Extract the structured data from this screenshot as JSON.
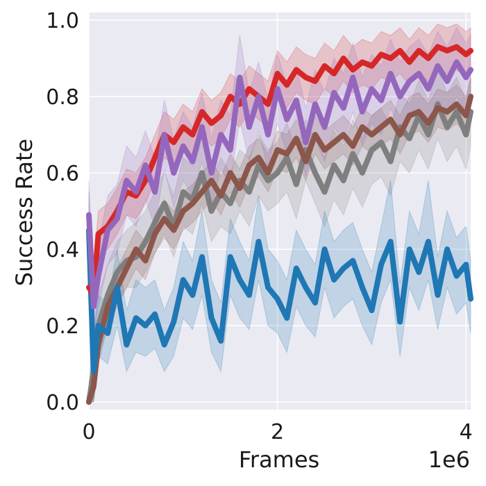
{
  "chart_data": {
    "type": "line",
    "title": "",
    "xlabel": "Frames",
    "ylabel": "Success Rate",
    "x_offset_label": "1e6",
    "xlim": [
      0,
      4.05
    ],
    "ylim": [
      -0.02,
      1.02
    ],
    "xticks": [
      0,
      2,
      4
    ],
    "xtick_labels": [
      "0",
      "2",
      "4"
    ],
    "yticks": [
      0.0,
      0.2,
      0.4,
      0.6,
      0.8,
      1.0
    ],
    "ytick_labels": [
      "0.0",
      "0.2",
      "0.4",
      "0.6",
      "0.8",
      "1.0"
    ],
    "grid": true,
    "legend": "none",
    "background": "#eaeaf2",
    "series": [
      {
        "color": "#7f7f7f",
        "x": [
          0,
          0.05,
          0.1,
          0.2,
          0.3,
          0.4,
          0.5,
          0.6,
          0.7,
          0.8,
          0.9,
          1.0,
          1.1,
          1.2,
          1.3,
          1.4,
          1.5,
          1.6,
          1.7,
          1.8,
          1.9,
          2.0,
          2.1,
          2.2,
          2.3,
          2.4,
          2.5,
          2.6,
          2.7,
          2.8,
          2.9,
          3.0,
          3.1,
          3.2,
          3.3,
          3.4,
          3.5,
          3.6,
          3.7,
          3.8,
          3.9,
          4.0,
          4.05
        ],
        "y": [
          0.0,
          0.08,
          0.2,
          0.28,
          0.34,
          0.37,
          0.38,
          0.42,
          0.47,
          0.52,
          0.46,
          0.55,
          0.53,
          0.6,
          0.5,
          0.55,
          0.52,
          0.58,
          0.55,
          0.62,
          0.58,
          0.6,
          0.64,
          0.57,
          0.66,
          0.6,
          0.55,
          0.62,
          0.58,
          0.65,
          0.6,
          0.66,
          0.68,
          0.63,
          0.72,
          0.69,
          0.75,
          0.7,
          0.78,
          0.72,
          0.76,
          0.7,
          0.76
        ],
        "lower": [
          0.0,
          0.0,
          0.12,
          0.2,
          0.26,
          0.3,
          0.3,
          0.34,
          0.39,
          0.44,
          0.38,
          0.46,
          0.44,
          0.52,
          0.42,
          0.46,
          0.44,
          0.5,
          0.46,
          0.54,
          0.5,
          0.52,
          0.55,
          0.48,
          0.58,
          0.52,
          0.46,
          0.53,
          0.49,
          0.56,
          0.51,
          0.57,
          0.59,
          0.54,
          0.63,
          0.6,
          0.66,
          0.61,
          0.69,
          0.63,
          0.67,
          0.61,
          0.67
        ],
        "upper": [
          0.05,
          0.16,
          0.28,
          0.36,
          0.42,
          0.45,
          0.47,
          0.5,
          0.55,
          0.6,
          0.54,
          0.64,
          0.62,
          0.68,
          0.58,
          0.64,
          0.6,
          0.66,
          0.64,
          0.7,
          0.66,
          0.68,
          0.73,
          0.66,
          0.74,
          0.68,
          0.64,
          0.71,
          0.67,
          0.74,
          0.69,
          0.75,
          0.77,
          0.72,
          0.81,
          0.78,
          0.84,
          0.79,
          0.87,
          0.81,
          0.85,
          0.79,
          0.85
        ]
      },
      {
        "color": "#8c564b",
        "x": [
          0,
          0.05,
          0.1,
          0.2,
          0.3,
          0.4,
          0.5,
          0.6,
          0.7,
          0.8,
          0.9,
          1.0,
          1.1,
          1.2,
          1.3,
          1.4,
          1.5,
          1.6,
          1.7,
          1.8,
          1.9,
          2.0,
          2.1,
          2.2,
          2.3,
          2.4,
          2.5,
          2.6,
          2.7,
          2.8,
          2.9,
          3.0,
          3.1,
          3.2,
          3.3,
          3.4,
          3.5,
          3.6,
          3.7,
          3.8,
          3.9,
          4.0,
          4.05
        ],
        "y": [
          0.0,
          0.04,
          0.15,
          0.25,
          0.3,
          0.35,
          0.4,
          0.37,
          0.44,
          0.48,
          0.45,
          0.5,
          0.52,
          0.55,
          0.58,
          0.54,
          0.6,
          0.56,
          0.62,
          0.64,
          0.6,
          0.66,
          0.65,
          0.69,
          0.63,
          0.7,
          0.66,
          0.68,
          0.7,
          0.67,
          0.72,
          0.7,
          0.72,
          0.74,
          0.7,
          0.75,
          0.76,
          0.73,
          0.77,
          0.76,
          0.78,
          0.75,
          0.8
        ],
        "lower": [
          0.0,
          0.0,
          0.1,
          0.2,
          0.25,
          0.3,
          0.35,
          0.32,
          0.39,
          0.43,
          0.4,
          0.45,
          0.47,
          0.5,
          0.53,
          0.49,
          0.55,
          0.51,
          0.57,
          0.59,
          0.55,
          0.61,
          0.6,
          0.64,
          0.58,
          0.65,
          0.61,
          0.63,
          0.65,
          0.62,
          0.67,
          0.65,
          0.67,
          0.69,
          0.65,
          0.7,
          0.71,
          0.68,
          0.72,
          0.71,
          0.73,
          0.7,
          0.75
        ],
        "upper": [
          0.02,
          0.09,
          0.2,
          0.3,
          0.35,
          0.4,
          0.45,
          0.42,
          0.49,
          0.53,
          0.5,
          0.55,
          0.57,
          0.6,
          0.63,
          0.59,
          0.65,
          0.61,
          0.67,
          0.69,
          0.65,
          0.71,
          0.7,
          0.74,
          0.68,
          0.75,
          0.71,
          0.73,
          0.75,
          0.72,
          0.77,
          0.75,
          0.77,
          0.79,
          0.75,
          0.8,
          0.81,
          0.78,
          0.82,
          0.81,
          0.83,
          0.8,
          0.85
        ]
      },
      {
        "color": "#1f77b4",
        "x": [
          0,
          0.05,
          0.1,
          0.2,
          0.3,
          0.4,
          0.5,
          0.6,
          0.7,
          0.8,
          0.9,
          1.0,
          1.1,
          1.2,
          1.3,
          1.4,
          1.5,
          1.6,
          1.7,
          1.8,
          1.9,
          2.0,
          2.1,
          2.2,
          2.3,
          2.4,
          2.5,
          2.6,
          2.7,
          2.8,
          2.9,
          3.0,
          3.1,
          3.2,
          3.3,
          3.4,
          3.5,
          3.6,
          3.7,
          3.8,
          3.9,
          4.0,
          4.05
        ],
        "y": [
          0.45,
          0.08,
          0.2,
          0.18,
          0.3,
          0.15,
          0.22,
          0.2,
          0.23,
          0.15,
          0.21,
          0.32,
          0.28,
          0.38,
          0.22,
          0.16,
          0.38,
          0.32,
          0.28,
          0.42,
          0.3,
          0.27,
          0.22,
          0.35,
          0.3,
          0.26,
          0.4,
          0.32,
          0.35,
          0.37,
          0.3,
          0.24,
          0.36,
          0.42,
          0.21,
          0.4,
          0.34,
          0.42,
          0.28,
          0.4,
          0.33,
          0.36,
          0.27
        ],
        "lower": [
          0.35,
          0.0,
          0.12,
          0.1,
          0.2,
          0.08,
          0.13,
          0.12,
          0.14,
          0.08,
          0.12,
          0.22,
          0.19,
          0.28,
          0.13,
          0.08,
          0.28,
          0.22,
          0.19,
          0.32,
          0.2,
          0.18,
          0.13,
          0.25,
          0.2,
          0.17,
          0.3,
          0.22,
          0.25,
          0.27,
          0.2,
          0.15,
          0.26,
          0.32,
          0.12,
          0.3,
          0.24,
          0.32,
          0.19,
          0.3,
          0.23,
          0.26,
          0.18
        ],
        "upper": [
          0.55,
          0.2,
          0.28,
          0.26,
          0.4,
          0.24,
          0.32,
          0.3,
          0.32,
          0.24,
          0.3,
          0.42,
          0.37,
          0.5,
          0.32,
          0.26,
          0.48,
          0.42,
          0.37,
          0.54,
          0.4,
          0.37,
          0.32,
          0.45,
          0.4,
          0.36,
          0.5,
          0.42,
          0.45,
          0.47,
          0.4,
          0.34,
          0.46,
          0.58,
          0.31,
          0.5,
          0.44,
          0.58,
          0.38,
          0.5,
          0.43,
          0.46,
          0.37
        ]
      },
      {
        "color": "#d62728",
        "x": [
          0,
          0.05,
          0.1,
          0.2,
          0.3,
          0.4,
          0.5,
          0.6,
          0.7,
          0.8,
          0.9,
          1.0,
          1.1,
          1.2,
          1.3,
          1.4,
          1.5,
          1.6,
          1.7,
          1.8,
          1.9,
          2.0,
          2.1,
          2.2,
          2.3,
          2.4,
          2.5,
          2.6,
          2.7,
          2.8,
          2.9,
          3.0,
          3.1,
          3.2,
          3.3,
          3.4,
          3.5,
          3.6,
          3.7,
          3.8,
          3.9,
          4.0,
          4.05
        ],
        "y": [
          0.3,
          0.28,
          0.44,
          0.46,
          0.5,
          0.55,
          0.54,
          0.58,
          0.64,
          0.7,
          0.68,
          0.72,
          0.7,
          0.76,
          0.73,
          0.75,
          0.8,
          0.78,
          0.82,
          0.8,
          0.78,
          0.86,
          0.83,
          0.87,
          0.85,
          0.84,
          0.88,
          0.86,
          0.9,
          0.87,
          0.89,
          0.88,
          0.91,
          0.9,
          0.92,
          0.89,
          0.92,
          0.9,
          0.93,
          0.92,
          0.93,
          0.91,
          0.92
        ],
        "lower": [
          0.26,
          0.22,
          0.38,
          0.4,
          0.44,
          0.49,
          0.48,
          0.52,
          0.58,
          0.64,
          0.62,
          0.66,
          0.64,
          0.7,
          0.67,
          0.69,
          0.74,
          0.72,
          0.76,
          0.74,
          0.72,
          0.8,
          0.77,
          0.81,
          0.79,
          0.78,
          0.82,
          0.8,
          0.84,
          0.81,
          0.83,
          0.82,
          0.85,
          0.84,
          0.86,
          0.83,
          0.86,
          0.84,
          0.87,
          0.86,
          0.87,
          0.85,
          0.86
        ],
        "upper": [
          0.34,
          0.34,
          0.5,
          0.52,
          0.56,
          0.61,
          0.6,
          0.64,
          0.7,
          0.76,
          0.74,
          0.78,
          0.76,
          0.82,
          0.79,
          0.81,
          0.86,
          0.84,
          0.88,
          0.86,
          0.84,
          0.92,
          0.89,
          0.93,
          0.91,
          0.9,
          0.94,
          0.92,
          0.96,
          0.93,
          0.95,
          0.94,
          0.97,
          0.96,
          0.98,
          0.95,
          0.98,
          0.96,
          0.99,
          0.98,
          0.99,
          0.97,
          0.98
        ]
      },
      {
        "color": "#9467bd",
        "x": [
          0,
          0.05,
          0.1,
          0.2,
          0.3,
          0.4,
          0.5,
          0.6,
          0.7,
          0.8,
          0.9,
          1.0,
          1.1,
          1.2,
          1.3,
          1.4,
          1.5,
          1.6,
          1.7,
          1.8,
          1.9,
          2.0,
          2.1,
          2.2,
          2.3,
          2.4,
          2.5,
          2.6,
          2.7,
          2.8,
          2.9,
          3.0,
          3.1,
          3.2,
          3.3,
          3.4,
          3.5,
          3.6,
          3.7,
          3.8,
          3.9,
          4.0,
          4.05
        ],
        "y": [
          0.49,
          0.25,
          0.33,
          0.45,
          0.48,
          0.58,
          0.55,
          0.62,
          0.55,
          0.7,
          0.6,
          0.67,
          0.63,
          0.72,
          0.6,
          0.7,
          0.66,
          0.85,
          0.72,
          0.8,
          0.7,
          0.82,
          0.74,
          0.79,
          0.68,
          0.78,
          0.72,
          0.81,
          0.77,
          0.85,
          0.76,
          0.82,
          0.79,
          0.86,
          0.8,
          0.84,
          0.86,
          0.82,
          0.88,
          0.84,
          0.89,
          0.85,
          0.87
        ],
        "lower": [
          0.4,
          0.18,
          0.25,
          0.36,
          0.39,
          0.49,
          0.46,
          0.53,
          0.46,
          0.61,
          0.51,
          0.58,
          0.54,
          0.63,
          0.51,
          0.61,
          0.57,
          0.74,
          0.63,
          0.71,
          0.61,
          0.73,
          0.65,
          0.7,
          0.59,
          0.69,
          0.63,
          0.72,
          0.68,
          0.76,
          0.67,
          0.73,
          0.7,
          0.77,
          0.71,
          0.75,
          0.77,
          0.73,
          0.79,
          0.75,
          0.8,
          0.76,
          0.78
        ],
        "upper": [
          0.58,
          0.33,
          0.41,
          0.54,
          0.57,
          0.67,
          0.64,
          0.71,
          0.64,
          0.79,
          0.69,
          0.76,
          0.72,
          0.81,
          0.69,
          0.79,
          0.75,
          0.96,
          0.81,
          0.89,
          0.79,
          0.91,
          0.83,
          0.88,
          0.77,
          0.87,
          0.81,
          0.9,
          0.86,
          0.94,
          0.85,
          0.91,
          0.88,
          0.95,
          0.89,
          0.93,
          0.95,
          0.91,
          0.97,
          0.93,
          0.98,
          0.94,
          0.96
        ]
      }
    ]
  }
}
